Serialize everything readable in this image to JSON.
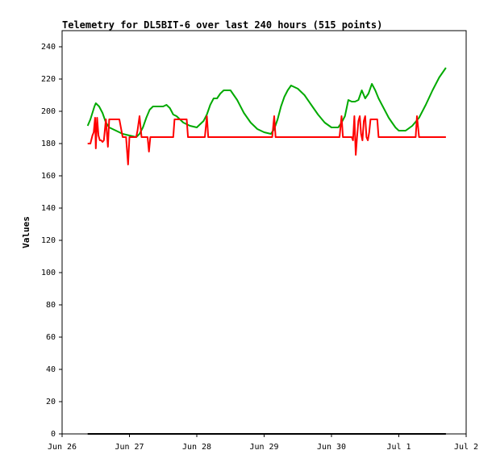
{
  "chart_data": {
    "type": "line",
    "title": "Telemetry for DL5BIT-6 over last 240 hours (515 points)",
    "xlabel": "",
    "ylabel": "Values",
    "ylim": [
      0,
      250
    ],
    "y_ticks": [
      0,
      20,
      40,
      60,
      80,
      100,
      120,
      140,
      160,
      180,
      200,
      220,
      240
    ],
    "x_range_days": [
      "Jun 26",
      "Jul 2"
    ],
    "x_ticks": [
      "Jun 26",
      "Jun 27",
      "Jun 28",
      "Jun 29",
      "Jun 30",
      "Jul 1",
      "Jul 2"
    ],
    "grid": false,
    "legend": "none",
    "series": [
      {
        "color": "#00aa00",
        "x": [
          26.38,
          26.42,
          26.45,
          26.48,
          26.5,
          26.55,
          26.6,
          26.65,
          26.7,
          26.8,
          26.9,
          27.0,
          27.1,
          27.15,
          27.2,
          27.25,
          27.3,
          27.35,
          27.4,
          27.45,
          27.5,
          27.55,
          27.6,
          27.65,
          27.7,
          27.75,
          27.8,
          27.9,
          28.0,
          28.1,
          28.15,
          28.2,
          28.25,
          28.3,
          28.35,
          28.4,
          28.45,
          28.5,
          28.6,
          28.7,
          28.8,
          28.9,
          29.0,
          29.1,
          29.15,
          29.2,
          29.25,
          29.3,
          29.35,
          29.4,
          29.45,
          29.5,
          29.6,
          29.7,
          29.8,
          29.9,
          30.0,
          30.1,
          30.15,
          30.2,
          30.25,
          30.3,
          30.35,
          30.4,
          30.45,
          30.5,
          30.55,
          30.6,
          30.65,
          30.7,
          30.75,
          30.8,
          30.85,
          30.9,
          30.95,
          31.0,
          31.1,
          31.2,
          31.3,
          31.4,
          31.5,
          31.6,
          31.7
        ],
        "y": [
          191,
          195,
          199,
          203,
          205,
          203,
          199,
          193,
          190,
          188,
          186,
          185,
          184,
          186,
          190,
          196,
          201,
          203,
          203,
          203,
          203,
          204,
          202,
          198,
          197,
          195,
          193,
          191,
          190,
          194,
          198,
          204,
          208,
          208,
          211,
          213,
          213,
          213,
          207,
          199,
          193,
          189,
          187,
          186,
          189,
          195,
          203,
          209,
          213,
          216,
          215,
          214,
          210,
          204,
          198,
          193,
          190,
          190,
          193,
          197,
          207,
          206,
          206,
          207,
          213,
          208,
          211,
          217,
          213,
          208,
          204,
          200,
          196,
          193,
          190,
          188,
          188,
          191,
          196,
          204,
          213,
          221,
          227
        ]
      },
      {
        "color": "#ff0000",
        "x": [
          26.38,
          26.42,
          26.45,
          26.47,
          26.49,
          26.5,
          26.52,
          26.54,
          26.56,
          26.58,
          26.6,
          26.62,
          26.65,
          26.68,
          26.7,
          26.72,
          26.74,
          26.76,
          26.78,
          26.8,
          26.85,
          26.9,
          26.92,
          26.95,
          26.98,
          27.0,
          27.02,
          27.05,
          27.1,
          27.12,
          27.15,
          27.18,
          27.2,
          27.22,
          27.25,
          27.27,
          27.29,
          27.31,
          27.33,
          27.35,
          27.5,
          27.65,
          27.67,
          27.7,
          27.8,
          27.85,
          27.87,
          27.9,
          28.0,
          28.1,
          28.12,
          28.15,
          28.17,
          28.2,
          28.5,
          28.8,
          29.0,
          29.1,
          29.12,
          29.15,
          29.17,
          29.2,
          29.5,
          29.8,
          30.0,
          30.1,
          30.12,
          30.15,
          30.17,
          30.2,
          30.25,
          30.3,
          30.32,
          30.34,
          30.36,
          30.38,
          30.4,
          30.42,
          30.44,
          30.46,
          30.48,
          30.5,
          30.52,
          30.54,
          30.56,
          30.58,
          30.6,
          30.62,
          30.64,
          30.66,
          30.68,
          30.7,
          30.75,
          30.8,
          30.82,
          30.85,
          30.9,
          31.0,
          31.1,
          31.2,
          31.25,
          31.27,
          31.3,
          31.35,
          31.5,
          31.7
        ],
        "y": [
          180,
          180,
          185,
          187,
          196,
          177,
          196,
          185,
          182,
          182,
          181,
          182,
          195,
          178,
          195,
          195,
          195,
          195,
          195,
          195,
          195,
          184,
          184,
          184,
          167,
          184,
          184,
          184,
          184,
          188,
          197,
          184,
          184,
          184,
          184,
          184,
          175,
          184,
          184,
          184,
          184,
          184,
          195,
          195,
          195,
          195,
          184,
          184,
          184,
          184,
          184,
          197,
          184,
          184,
          184,
          184,
          184,
          184,
          184,
          197,
          184,
          184,
          184,
          184,
          184,
          184,
          184,
          197,
          184,
          184,
          184,
          184,
          182,
          197,
          173,
          184,
          194,
          197,
          186,
          182,
          194,
          197,
          184,
          182,
          187,
          195,
          195,
          195,
          195,
          195,
          195,
          184,
          184,
          184,
          184,
          184,
          184,
          184,
          184,
          184,
          184,
          197,
          184,
          184,
          184,
          184
        ]
      },
      {
        "color": "#000000",
        "x": [
          26.38,
          31.7
        ],
        "y": [
          0,
          0
        ]
      }
    ]
  }
}
